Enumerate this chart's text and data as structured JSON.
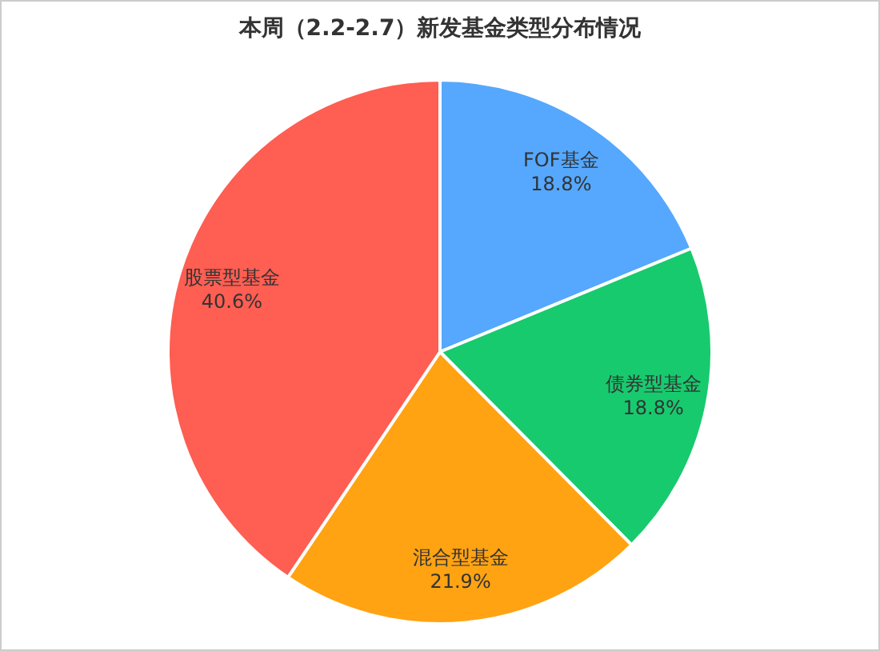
{
  "chart_data": {
    "type": "pie",
    "title": "本周（2.2-2.7）新发基金类型分布情况",
    "categories": [
      "FOF基金",
      "债券型基金",
      "混合型基金",
      "股票型基金"
    ],
    "values": [
      18.8,
      18.8,
      21.9,
      40.6
    ],
    "colors": [
      "#55a8fd",
      "#17ca6e",
      "#ffa313",
      "#ff5e52"
    ],
    "value_labels": [
      "18.8%",
      "18.8%",
      "21.9%",
      "40.6%"
    ]
  }
}
